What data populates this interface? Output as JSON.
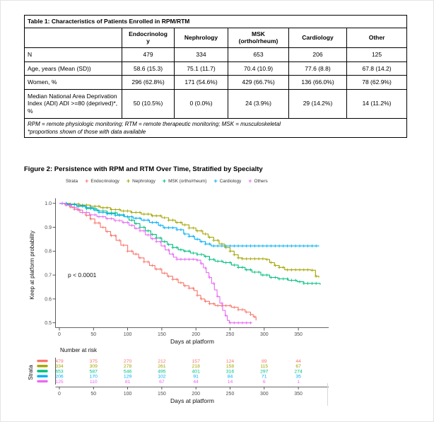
{
  "table1": {
    "title": "Table 1: Characteristics of Patients Enrolled in RPM/RTM",
    "columns": [
      "",
      "Endocrinolog\ny",
      "Nephrology",
      "MSK\n(ortho/rheum)",
      "Cardiology",
      "Other"
    ],
    "rows": [
      {
        "label": "N",
        "values": [
          "479",
          "334",
          "653",
          "206",
          "125"
        ]
      },
      {
        "label": "Age, years (Mean (SD))",
        "values": [
          "58.6 (15.3)",
          "75.1 (11.7)",
          "70.4 (10.9)",
          "77.6 (8.8)",
          "67.8 (14.2)"
        ]
      },
      {
        "label": "Women, %",
        "values": [
          "296 (62.8%)",
          "171 (54.6%)",
          "429 (66.7%)",
          "136 (66.0%)",
          "78 (62.9%)"
        ]
      },
      {
        "label": "Median National Area Deprivation Index (ADI) ADI >=80 (deprived)*, %",
        "values": [
          "50 (10.5%)",
          "0 (0.0%)",
          "24 (3.9%)",
          "29 (14.2%)",
          "14 (11.2%)"
        ]
      }
    ],
    "footnotes": [
      "RPM = remote physiologic monitoring; RTM = remote therapeutic monitoring; MSK = musculoskeletal",
      "*proportions shown of those with data available"
    ]
  },
  "figure2": {
    "title": "Figure 2: Persistence with RPM and RTM Over Time, Stratified by Specialty"
  },
  "chart_data": {
    "type": "line",
    "subtype": "kaplan-meier-step",
    "title": "Persistence with RPM and RTM Over Time, Stratified by Specialty",
    "xlabel": "Days at platform",
    "ylabel": "Keep at platform probability",
    "xlim": [
      0,
      385
    ],
    "ylim": [
      0.5,
      1.0
    ],
    "xticks": [
      0,
      50,
      100,
      150,
      200,
      250,
      300,
      350
    ],
    "yticks": [
      "0.5",
      "0.6",
      "0.7",
      "0.8",
      "0.9",
      "1.0"
    ],
    "grid": false,
    "legend_title": "Strata",
    "legend_position": "top",
    "annotation": "p < 0.0001",
    "series": [
      {
        "name": "Endocrinology",
        "color": "#F8766D",
        "points": [
          [
            0,
            1.0
          ],
          [
            8,
            0.995
          ],
          [
            15,
            0.985
          ],
          [
            22,
            0.975
          ],
          [
            30,
            0.962
          ],
          [
            38,
            0.95
          ],
          [
            45,
            0.935
          ],
          [
            52,
            0.918
          ],
          [
            60,
            0.9
          ],
          [
            68,
            0.882
          ],
          [
            75,
            0.865
          ],
          [
            83,
            0.845
          ],
          [
            90,
            0.825
          ],
          [
            100,
            0.8
          ],
          [
            108,
            0.788
          ],
          [
            116,
            0.772
          ],
          [
            124,
            0.755
          ],
          [
            132,
            0.74
          ],
          [
            140,
            0.725
          ],
          [
            150,
            0.708
          ],
          [
            158,
            0.695
          ],
          [
            166,
            0.682
          ],
          [
            174,
            0.668
          ],
          [
            182,
            0.655
          ],
          [
            190,
            0.645
          ],
          [
            197,
            0.635
          ],
          [
            202,
            0.615
          ],
          [
            207,
            0.6
          ],
          [
            213,
            0.59
          ],
          [
            220,
            0.58
          ],
          [
            228,
            0.572
          ],
          [
            252,
            0.565
          ],
          [
            262,
            0.555
          ],
          [
            272,
            0.545
          ],
          [
            280,
            0.535
          ],
          [
            284,
            0.525
          ],
          [
            288,
            0.51
          ]
        ]
      },
      {
        "name": "Nephrology",
        "color": "#A3A500",
        "points": [
          [
            0,
            1.0
          ],
          [
            15,
            0.997
          ],
          [
            30,
            0.993
          ],
          [
            45,
            0.988
          ],
          [
            60,
            0.982
          ],
          [
            75,
            0.974
          ],
          [
            90,
            0.968
          ],
          [
            105,
            0.962
          ],
          [
            120,
            0.955
          ],
          [
            135,
            0.948
          ],
          [
            150,
            0.94
          ],
          [
            160,
            0.93
          ],
          [
            170,
            0.92
          ],
          [
            180,
            0.91
          ],
          [
            190,
            0.897
          ],
          [
            200,
            0.885
          ],
          [
            210,
            0.872
          ],
          [
            218,
            0.858
          ],
          [
            226,
            0.845
          ],
          [
            234,
            0.83
          ],
          [
            242,
            0.815
          ],
          [
            250,
            0.8
          ],
          [
            256,
            0.785
          ],
          [
            262,
            0.772
          ],
          [
            268,
            0.768
          ],
          [
            302,
            0.765
          ],
          [
            308,
            0.752
          ],
          [
            315,
            0.74
          ],
          [
            322,
            0.732
          ],
          [
            330,
            0.722
          ],
          [
            368,
            0.72
          ],
          [
            375,
            0.695
          ],
          [
            380,
            0.69
          ]
        ]
      },
      {
        "name": "MSK (ortho/rheum)",
        "color": "#00BF7D",
        "points": [
          [
            0,
            1.0
          ],
          [
            12,
            0.995
          ],
          [
            25,
            0.988
          ],
          [
            40,
            0.978
          ],
          [
            55,
            0.968
          ],
          [
            70,
            0.96
          ],
          [
            85,
            0.952
          ],
          [
            95,
            0.944
          ],
          [
            102,
            0.93
          ],
          [
            110,
            0.915
          ],
          [
            118,
            0.9
          ],
          [
            126,
            0.885
          ],
          [
            134,
            0.87
          ],
          [
            142,
            0.855
          ],
          [
            150,
            0.84
          ],
          [
            158,
            0.828
          ],
          [
            166,
            0.815
          ],
          [
            174,
            0.806
          ],
          [
            182,
            0.8
          ],
          [
            192,
            0.792
          ],
          [
            202,
            0.786
          ],
          [
            212,
            0.778
          ],
          [
            220,
            0.765
          ],
          [
            228,
            0.758
          ],
          [
            240,
            0.752
          ],
          [
            252,
            0.742
          ],
          [
            262,
            0.732
          ],
          [
            272,
            0.722
          ],
          [
            282,
            0.712
          ],
          [
            295,
            0.7
          ],
          [
            308,
            0.69
          ],
          [
            320,
            0.684
          ],
          [
            335,
            0.678
          ],
          [
            348,
            0.672
          ],
          [
            358,
            0.665
          ],
          [
            382,
            0.66
          ]
        ]
      },
      {
        "name": "Cardiology",
        "color": "#00B0F6",
        "points": [
          [
            0,
            1.0
          ],
          [
            12,
            0.996
          ],
          [
            25,
            0.99
          ],
          [
            38,
            0.982
          ],
          [
            50,
            0.972
          ],
          [
            58,
            0.962
          ],
          [
            70,
            0.956
          ],
          [
            82,
            0.95
          ],
          [
            95,
            0.944
          ],
          [
            108,
            0.938
          ],
          [
            120,
            0.93
          ],
          [
            132,
            0.92
          ],
          [
            145,
            0.908
          ],
          [
            152,
            0.898
          ],
          [
            172,
            0.89
          ],
          [
            182,
            0.872
          ],
          [
            190,
            0.862
          ],
          [
            198,
            0.85
          ],
          [
            206,
            0.84
          ],
          [
            214,
            0.83
          ],
          [
            222,
            0.822
          ],
          [
            380,
            0.82
          ]
        ]
      },
      {
        "name": "Others",
        "color": "#E76BF3",
        "points": [
          [
            0,
            1.0
          ],
          [
            10,
            0.992
          ],
          [
            18,
            0.982
          ],
          [
            26,
            0.972
          ],
          [
            34,
            0.962
          ],
          [
            44,
            0.952
          ],
          [
            55,
            0.944
          ],
          [
            68,
            0.936
          ],
          [
            80,
            0.928
          ],
          [
            92,
            0.92
          ],
          [
            102,
            0.908
          ],
          [
            110,
            0.895
          ],
          [
            118,
            0.885
          ],
          [
            126,
            0.868
          ],
          [
            134,
            0.852
          ],
          [
            142,
            0.84
          ],
          [
            149,
            0.822
          ],
          [
            155,
            0.805
          ],
          [
            161,
            0.788
          ],
          [
            167,
            0.775
          ],
          [
            172,
            0.766
          ],
          [
            202,
            0.762
          ],
          [
            207,
            0.748
          ],
          [
            211,
            0.73
          ],
          [
            215,
            0.71
          ],
          [
            219,
            0.69
          ],
          [
            223,
            0.665
          ],
          [
            227,
            0.638
          ],
          [
            231,
            0.61
          ],
          [
            235,
            0.582
          ],
          [
            239,
            0.552
          ],
          [
            243,
            0.53
          ],
          [
            246,
            0.51
          ],
          [
            249,
            0.5
          ],
          [
            282,
            0.5
          ]
        ]
      }
    ],
    "number_at_risk": {
      "title": "Number at risk",
      "ylabel": "Strata",
      "xlabel": "Days at platform",
      "days": [
        0,
        50,
        100,
        150,
        200,
        250,
        300,
        350
      ],
      "rows": [
        {
          "name": "Endocrinology",
          "color": "#F8766D",
          "values": [
            479,
            375,
            270,
            212,
            157,
            124,
            89,
            44
          ]
        },
        {
          "name": "Nephrology",
          "color": "#A3A500",
          "values": [
            334,
            309,
            278,
            261,
            218,
            158,
            115,
            67
          ]
        },
        {
          "name": "MSK (ortho/rheum)",
          "color": "#00BF7D",
          "values": [
            653,
            587,
            546,
            495,
            401,
            316,
            297,
            274
          ]
        },
        {
          "name": "Cardiology",
          "color": "#00B0F6",
          "values": [
            206,
            170,
            129,
            102,
            91,
            84,
            71,
            35
          ]
        },
        {
          "name": "Others",
          "color": "#E76BF3",
          "values": [
            125,
            110,
            81,
            67,
            44,
            14,
            6,
            1
          ]
        }
      ]
    }
  }
}
